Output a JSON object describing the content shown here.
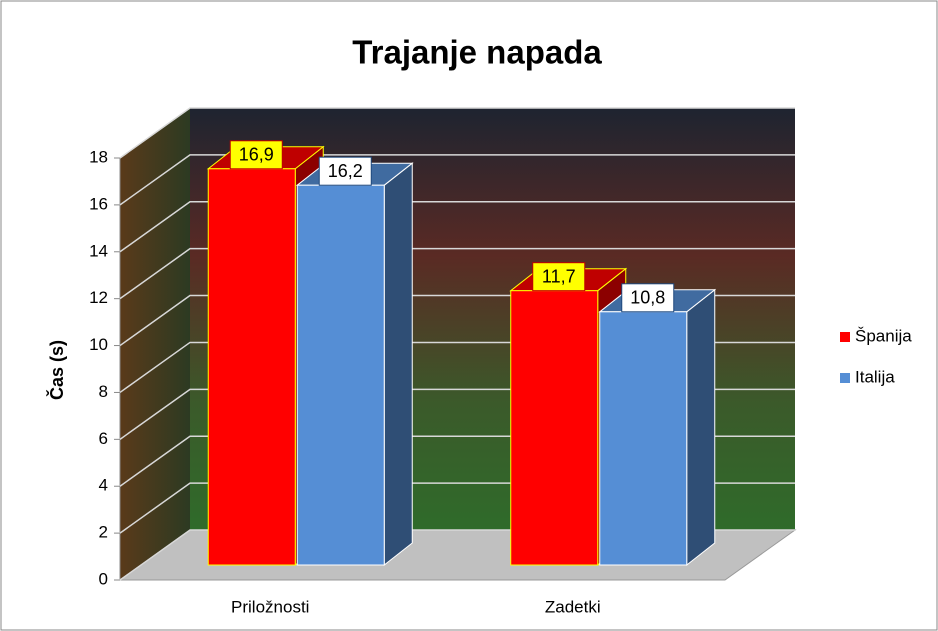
{
  "chart_data": {
    "type": "bar3d",
    "title": "Trajanje napada",
    "y_axis_label": "Čas (s)",
    "categories": [
      "Priložnosti",
      "Zadetki"
    ],
    "series": [
      {
        "name": "Španija",
        "color": "#ff0000",
        "values": [
          16.9,
          11.7
        ],
        "value_labels": [
          "16,9",
          "11,7"
        ]
      },
      {
        "name": "Italija",
        "color": "#558ed5",
        "values": [
          16.2,
          10.8
        ],
        "value_labels": [
          "16,2",
          "10,8"
        ]
      }
    ],
    "ylim": [
      0,
      18
    ],
    "yticks": [
      0,
      2,
      4,
      6,
      8,
      10,
      12,
      14,
      16,
      18
    ],
    "grid": true,
    "legend": "right"
  }
}
